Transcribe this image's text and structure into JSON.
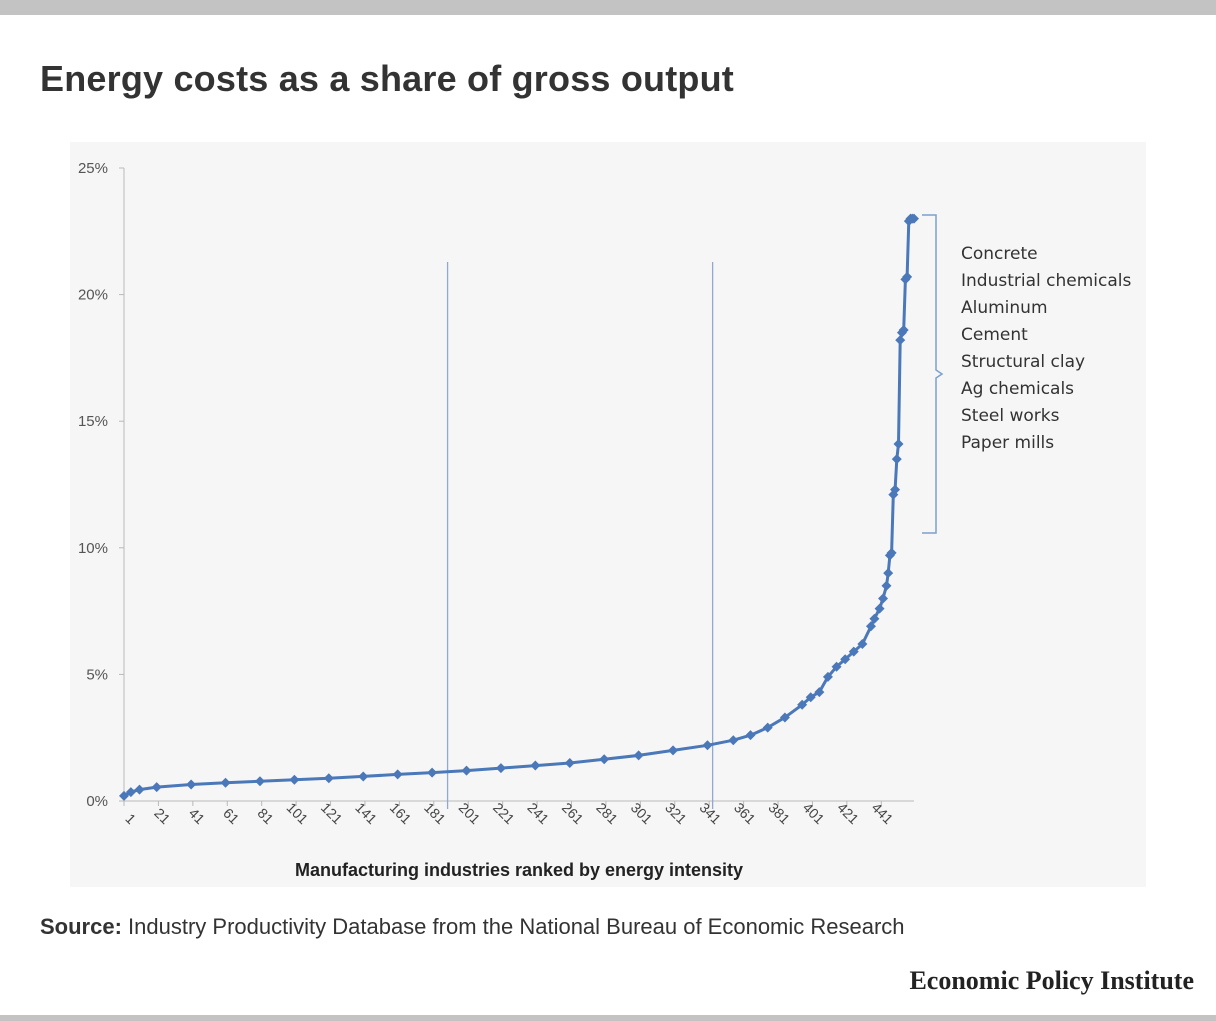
{
  "title": "Energy costs as a share of gross output",
  "source_label": "Source:",
  "source_text": "Industry Productivity Database from the National Bureau of Economic Research",
  "brand": "Economic Policy Institute",
  "colors": {
    "series": "#4a78b8",
    "axis": "#b9b9b9",
    "text": "#333333"
  },
  "chart_data": {
    "type": "line",
    "title": "",
    "xlabel": "Manufacturing industries ranked by energy intensity",
    "ylabel": "",
    "x_ticks": [
      "1",
      "21",
      "41",
      "61",
      "81",
      "101",
      "121",
      "141",
      "161",
      "181",
      "201",
      "221",
      "241",
      "261",
      "281",
      "301",
      "321",
      "341",
      "361",
      "381",
      "401",
      "421",
      "441"
    ],
    "y_ticks": [
      "0%",
      "5%",
      "10%",
      "15%",
      "20%",
      "25%"
    ],
    "xlim": [
      1,
      460
    ],
    "ylim": [
      0,
      25
    ],
    "reference_lines_x": [
      189,
      343
    ],
    "series": [
      {
        "marker": "diamond",
        "x": [
          1,
          5,
          10,
          20,
          40,
          60,
          80,
          100,
          120,
          140,
          160,
          180,
          200,
          220,
          240,
          260,
          280,
          300,
          320,
          340,
          355,
          365,
          375,
          385,
          395,
          400,
          405,
          410,
          415,
          420,
          425,
          430,
          435,
          437,
          440,
          442,
          444,
          445,
          446,
          447,
          448,
          449,
          450,
          451,
          452,
          453,
          454,
          455,
          456,
          457,
          458,
          459,
          460
        ],
        "y": [
          0.2,
          0.35,
          0.45,
          0.55,
          0.65,
          0.72,
          0.78,
          0.84,
          0.9,
          0.97,
          1.05,
          1.12,
          1.2,
          1.3,
          1.4,
          1.5,
          1.65,
          1.8,
          2.0,
          2.2,
          2.4,
          2.6,
          2.9,
          3.3,
          3.8,
          4.1,
          4.3,
          4.9,
          5.3,
          5.6,
          5.9,
          6.2,
          6.9,
          7.2,
          7.6,
          8.0,
          8.5,
          9.0,
          9.7,
          9.8,
          12.1,
          12.3,
          13.5,
          14.1,
          18.2,
          18.5,
          18.6,
          20.6,
          20.7,
          22.9,
          23.0,
          23.0,
          23.0
        ]
      }
    ],
    "annotation_list": [
      "Concrete",
      "Industrial chemicals",
      "Aluminum",
      "Cement",
      "Structural clay",
      "Ag chemicals",
      "Steel works",
      "Paper mills"
    ]
  }
}
